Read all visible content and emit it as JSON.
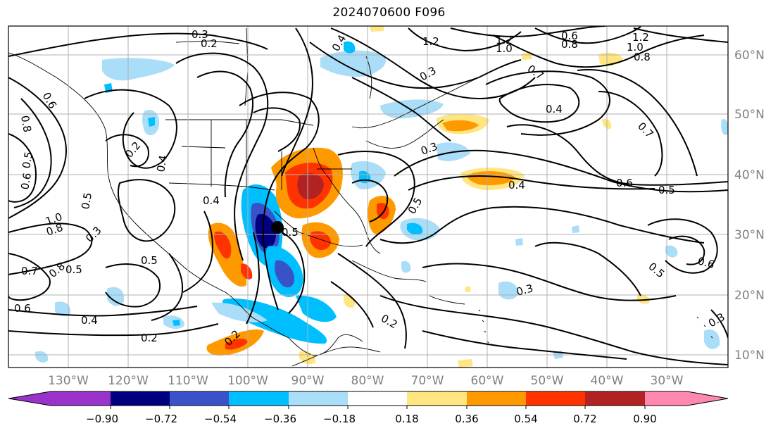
{
  "title": "2024070600 F096",
  "map": {
    "lon_labels": [
      "130°W",
      "120°W",
      "110°W",
      "100°W",
      "90°W",
      "80°W",
      "70°W",
      "60°W",
      "50°W",
      "40°W",
      "30°W"
    ],
    "lat_labels": [
      "60°N",
      "50°N",
      "40°N",
      "30°N",
      "20°N",
      "10°N"
    ],
    "label_color": "#808080",
    "gridline_color": "#b0b0b0",
    "contour_labels": [
      "0.3",
      "0.2",
      "0.4",
      "0.6",
      "0.5",
      "1.2",
      "1.0",
      "0.6",
      "0.8",
      "1.2",
      "1.0",
      "0.8",
      "0.7",
      "0.3",
      "0.4",
      "0.6",
      "0.8",
      "0.5",
      "0.6",
      "0.2",
      "0.4",
      "0.7",
      "0.3",
      "0.4",
      "0.6",
      "0.5",
      "0.5",
      "1.0",
      "0.8",
      "0.3",
      "0.5",
      "0.7",
      "0.8",
      "0.5",
      "0.6",
      "0.4",
      "0.2",
      "0.2",
      "0.5",
      "0.3",
      "0.2",
      "0.5",
      "0.6",
      "0.3"
    ]
  },
  "colorbar": {
    "ticks": [
      "−0.90",
      "−0.72",
      "−0.54",
      "−0.36",
      "−0.18",
      "0.18",
      "0.36",
      "0.54",
      "0.72",
      "0.90"
    ],
    "colors": [
      "#9933cc",
      "#000080",
      "#3a52c8",
      "#00bfff",
      "#aaddf7",
      "#ffffff",
      "#ffe680",
      "#ff9900",
      "#ff3300",
      "#b22222",
      "#ff88b0"
    ]
  }
}
